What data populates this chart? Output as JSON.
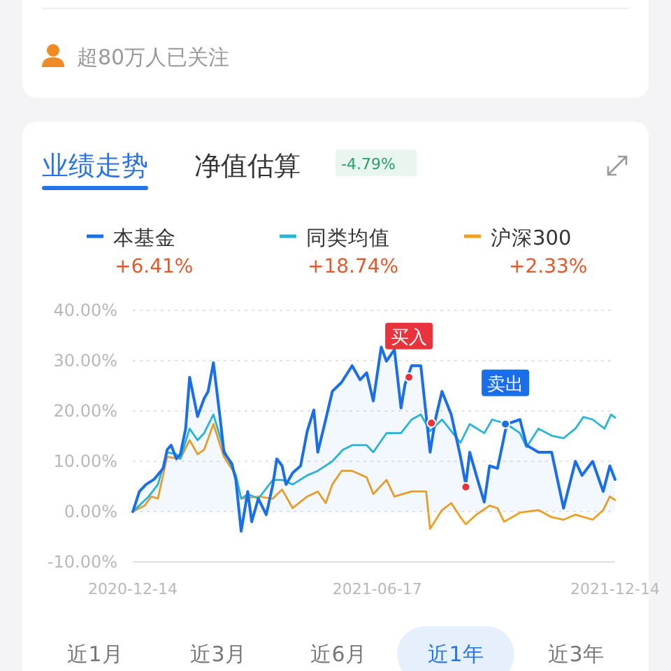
{
  "chart_data": {
    "type": "line",
    "xlim": [
      "2020-12-14",
      "2021-12-14"
    ],
    "xticks": [
      "2020-12-14",
      "2021-06-17",
      "2021-12-14"
    ],
    "ylim": [
      -10,
      40
    ],
    "yticks": [
      {
        "value": -10,
        "label": "-10.00%"
      },
      {
        "value": 0,
        "label": "0.00%"
      },
      {
        "value": 10,
        "label": "10.00%"
      },
      {
        "value": 20,
        "label": "20.00%"
      },
      {
        "value": 30,
        "label": "30.00%"
      },
      {
        "value": 40,
        "label": "40.00%"
      }
    ],
    "grid": "y",
    "legend": "top",
    "series": [
      {
        "name": "本基金",
        "type": "area",
        "color": "#1a6fe8",
        "x": [
          "2020-12-14",
          "2020-12-19",
          "2020-12-24",
          "2020-12-30",
          "2021-01-06",
          "2021-01-09",
          "2021-01-12",
          "2021-01-16",
          "2021-01-19",
          "2021-01-23",
          "2021-01-26",
          "2021-02-01",
          "2021-02-06",
          "2021-02-09",
          "2021-02-13",
          "2021-02-18",
          "2021-02-21",
          "2021-02-27",
          "2021-03-02",
          "2021-03-06",
          "2021-03-11",
          "2021-03-14",
          "2021-03-19",
          "2021-03-25",
          "2021-03-30",
          "2021-04-02",
          "2021-04-06",
          "2021-04-09",
          "2021-04-14",
          "2021-04-20",
          "2021-04-25",
          "2021-04-30",
          "2021-05-03",
          "2021-05-09",
          "2021-05-14",
          "2021-05-21",
          "2021-05-29",
          "2021-06-04",
          "2021-06-09",
          "2021-06-14",
          "2021-06-20",
          "2021-06-24",
          "2021-06-30",
          "2021-07-05",
          "2021-07-08",
          "2021-07-13",
          "2021-07-20",
          "2021-07-27",
          "2021-07-31",
          "2021-08-05",
          "2021-08-12",
          "2021-08-19",
          "2021-08-23",
          "2021-08-26",
          "2021-08-31",
          "2021-09-06",
          "2021-09-10",
          "2021-09-16",
          "2021-09-23",
          "2021-10-03",
          "2021-10-08",
          "2021-10-17",
          "2021-10-27",
          "2021-11-05",
          "2021-11-14",
          "2021-11-19",
          "2021-11-27",
          "2021-12-05",
          "2021-12-10",
          "2021-12-14"
        ],
        "values": [
          0,
          4.0,
          5.4,
          6.4,
          8.6,
          12.3,
          13.2,
          10.5,
          11.4,
          16.5,
          26.7,
          18.9,
          22.5,
          23.9,
          29.6,
          18.8,
          11.8,
          9.5,
          6.3,
          -3.9,
          4.0,
          -2.0,
          2.6,
          -0.6,
          5.4,
          10.5,
          9.1,
          5.4,
          7.7,
          9.1,
          16.0,
          20.2,
          11.8,
          18.3,
          23.9,
          25.7,
          29.0,
          26.2,
          27.6,
          22.0,
          32.7,
          29.9,
          32.2,
          20.6,
          25.3,
          29.0,
          29.0,
          11.8,
          18.3,
          23.9,
          19.3,
          10.9,
          5.4,
          11.8,
          7.2,
          1.9,
          9.1,
          8.6,
          17.4,
          18.3,
          13.2,
          11.8,
          11.8,
          0.7,
          10.0,
          7.2,
          10.0,
          4.0,
          9.1,
          6.4
        ]
      },
      {
        "name": "同类均值",
        "color": "#29b6d6",
        "x": [
          "2020-12-14",
          "2020-12-26",
          "2021-01-02",
          "2021-01-09",
          "2021-01-16",
          "2021-01-19",
          "2021-01-26",
          "2021-02-01",
          "2021-02-06",
          "2021-02-13",
          "2021-02-21",
          "2021-03-02",
          "2021-03-06",
          "2021-03-11",
          "2021-03-19",
          "2021-03-30",
          "2021-04-06",
          "2021-04-14",
          "2021-04-25",
          "2021-05-03",
          "2021-05-14",
          "2021-05-22",
          "2021-05-29",
          "2021-06-09",
          "2021-06-14",
          "2021-06-24",
          "2021-07-05",
          "2021-07-13",
          "2021-07-20",
          "2021-07-27",
          "2021-08-05",
          "2021-08-19",
          "2021-08-26",
          "2021-09-06",
          "2021-09-12",
          "2021-09-23",
          "2021-10-03",
          "2021-10-08",
          "2021-10-17",
          "2021-10-27",
          "2021-11-05",
          "2021-11-14",
          "2021-11-20",
          "2021-11-27",
          "2021-12-06",
          "2021-12-11",
          "2021-12-14"
        ],
        "values": [
          0,
          3.0,
          5.4,
          11.8,
          11.4,
          10.5,
          16.5,
          14.2,
          15.6,
          19.3,
          12.3,
          7.2,
          2.6,
          3.5,
          2.6,
          6.3,
          6.3,
          5.4,
          7.2,
          8.1,
          10.0,
          12.3,
          13.2,
          13.2,
          11.8,
          15.6,
          15.6,
          18.3,
          19.3,
          16.0,
          18.3,
          13.7,
          17.4,
          15.6,
          18.3,
          17.4,
          15.6,
          12.8,
          16.5,
          15.1,
          14.6,
          16.5,
          18.8,
          18.3,
          16.5,
          19.3,
          18.7
        ]
      },
      {
        "name": "沪深300",
        "color": "#f0a020",
        "x": [
          "2020-12-14",
          "2020-12-23",
          "2020-12-28",
          "2021-01-02",
          "2021-01-09",
          "2021-01-19",
          "2021-01-26",
          "2021-02-01",
          "2021-02-06",
          "2021-02-13",
          "2021-02-21",
          "2021-03-02",
          "2021-03-06",
          "2021-03-19",
          "2021-03-30",
          "2021-04-06",
          "2021-04-14",
          "2021-04-25",
          "2021-05-03",
          "2021-05-09",
          "2021-05-14",
          "2021-05-21",
          "2021-05-29",
          "2021-06-09",
          "2021-06-14",
          "2021-06-24",
          "2021-06-30",
          "2021-07-13",
          "2021-07-24",
          "2021-07-27",
          "2021-08-05",
          "2021-08-12",
          "2021-08-19",
          "2021-08-23",
          "2021-08-31",
          "2021-09-10",
          "2021-09-16",
          "2021-09-21",
          "2021-10-03",
          "2021-10-17",
          "2021-10-27",
          "2021-11-05",
          "2021-11-14",
          "2021-11-27",
          "2021-12-05",
          "2021-12-10",
          "2021-12-14"
        ],
        "values": [
          0,
          1.2,
          3.0,
          2.6,
          10.9,
          10.5,
          14.2,
          11.4,
          12.3,
          17.4,
          10.9,
          7.2,
          2.6,
          3.0,
          2.6,
          4.4,
          0.7,
          3.0,
          4.0,
          1.7,
          5.4,
          8.1,
          8.1,
          6.8,
          3.5,
          6.3,
          3.0,
          4.0,
          4.0,
          -3.4,
          0.3,
          1.7,
          -1.1,
          -2.5,
          -0.6,
          1.2,
          0.7,
          -2.0,
          -0.2,
          0.3,
          -1.1,
          -1.6,
          -0.6,
          -1.6,
          0.3,
          3.0,
          2.3
        ]
      },
      {
        "type": "scatter",
        "color": "#e8323c",
        "x": [
          "2021-07-11",
          "2021-07-28",
          "2021-08-23"
        ],
        "values": [
          26.7,
          17.6,
          4.9
        ]
      },
      {
        "type": "scatter",
        "color": "#1a6fe8",
        "x": [
          "2021-09-22"
        ],
        "values": [
          17.4
        ]
      }
    ],
    "annotations": [
      "超80万人已关注",
      "业绩走势",
      "净值估算",
      "-4.79%",
      "+6.41%",
      "+18.74%",
      "+2.33%",
      "近1月",
      "近3月",
      "近6月",
      "近1年",
      "近3年",
      {
        "text": "买入",
        "x": "2021-07-11",
        "y": 26.7
      },
      {
        "text": "卖出",
        "x": "2021-09-22",
        "y": 17.4
      }
    ]
  }
}
